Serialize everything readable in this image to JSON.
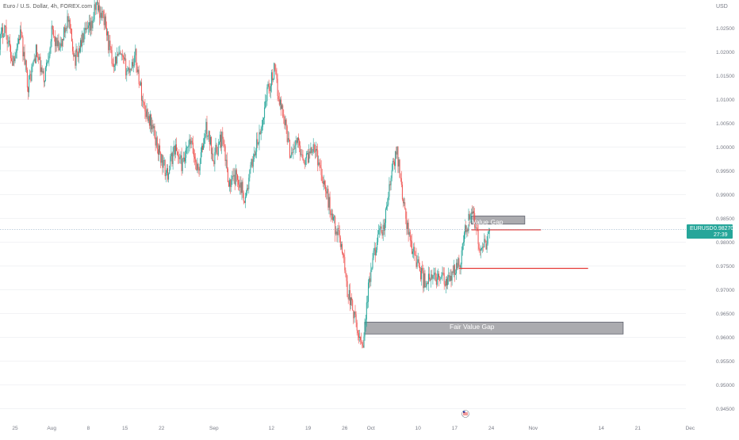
{
  "header": {
    "symbol_title": "Euro / U.S. Dollar, 4h, FOREX.com"
  },
  "price_axis": {
    "currency": "USD",
    "ticks": [
      "1.02500",
      "1.02000",
      "1.01500",
      "1.01000",
      "1.00500",
      "1.00000",
      "0.99500",
      "0.99000",
      "0.98500",
      "0.98000",
      "0.97500",
      "0.97000",
      "0.96500",
      "0.96000",
      "0.95500",
      "0.95000",
      "0.94500"
    ]
  },
  "time_axis": {
    "ticks": [
      {
        "label": "25",
        "day": 0
      },
      {
        "label": "Aug",
        "day": 7
      },
      {
        "label": "8",
        "day": 14
      },
      {
        "label": "15",
        "day": 21
      },
      {
        "label": "22",
        "day": 28
      },
      {
        "label": "Sep",
        "day": 38
      },
      {
        "label": "12",
        "day": 49
      },
      {
        "label": "19",
        "day": 56
      },
      {
        "label": "26",
        "day": 63
      },
      {
        "label": "Oct",
        "day": 68
      },
      {
        "label": "10",
        "day": 77
      },
      {
        "label": "17",
        "day": 84
      },
      {
        "label": "24",
        "day": 91
      },
      {
        "label": "Nov",
        "day": 99
      },
      {
        "label": "14",
        "day": 112
      },
      {
        "label": "21",
        "day": 119
      },
      {
        "label": "Dec",
        "day": 129
      }
    ]
  },
  "last_price": {
    "symbol": "EURUSD",
    "price": "0.98270",
    "countdown": "27:39",
    "value": 0.9827
  },
  "annotations": {
    "fvg_upper": {
      "label": "Fair Value Gap",
      "top": 0.9855,
      "bottom": 0.9838,
      "start_day": 87.2,
      "end_day": 97.4
    },
    "fvg_lower": {
      "label": "Fair Value Gap",
      "top": 0.9632,
      "bottom": 0.9607,
      "start_day": 66.8,
      "end_day": 116.2
    },
    "level_upper": {
      "price": 0.9826,
      "start_day": 87.2,
      "end_day": 100.5
    },
    "level_lower": {
      "price": 0.9745,
      "start_day": 84.8,
      "end_day": 109.5
    }
  },
  "colors": {
    "up": "#26a69a",
    "down": "#ef5350",
    "level": "#e53935",
    "box_fill": "#a6a7ab",
    "box_border": "#5d606b",
    "price_line": "#9ab4c9",
    "axis_text": "#787b86",
    "badge": "#26a69a"
  },
  "chart_data": {
    "type": "candlestick",
    "title": "Euro / U.S. Dollar, 4h, FOREX.com",
    "unit": "USD",
    "ylim": [
      0.9425,
      1.029
    ],
    "x_start_date": "2022-07-25",
    "anchors": [
      [
        -3.2,
        1.0215
      ],
      [
        -2.0,
        1.0255
      ],
      [
        -0.5,
        1.018
      ],
      [
        1.0,
        1.024
      ],
      [
        2.5,
        1.013
      ],
      [
        4.0,
        1.02
      ],
      [
        5.5,
        1.014
      ],
      [
        7.0,
        1.024
      ],
      [
        8.5,
        1.02
      ],
      [
        10.0,
        1.027
      ],
      [
        11.5,
        1.0185
      ],
      [
        13.0,
        1.023
      ],
      [
        14.5,
        1.025
      ],
      [
        15.5,
        1.03
      ],
      [
        17.0,
        1.027
      ],
      [
        18.5,
        1.018
      ],
      [
        20.0,
        1.019
      ],
      [
        21.5,
        1.016
      ],
      [
        23.0,
        1.019
      ],
      [
        24.5,
        1.009
      ],
      [
        26.0,
        1.005
      ],
      [
        27.5,
        0.999
      ],
      [
        29.0,
        0.994
      ],
      [
        30.5,
        1.0
      ],
      [
        32.0,
        0.996
      ],
      [
        33.5,
        1.001
      ],
      [
        35.0,
        0.995
      ],
      [
        36.5,
        1.004
      ],
      [
        38.0,
        0.998
      ],
      [
        39.5,
        1.002
      ],
      [
        41.0,
        0.992
      ],
      [
        42.5,
        0.994
      ],
      [
        44.0,
        0.989
      ],
      [
        45.5,
        0.998
      ],
      [
        47.0,
        1.003
      ],
      [
        48.0,
        1.011
      ],
      [
        49.5,
        1.016
      ],
      [
        50.5,
        1.01
      ],
      [
        51.5,
        1.006
      ],
      [
        52.5,
        0.999
      ],
      [
        54.0,
        1.001
      ],
      [
        55.5,
        0.997
      ],
      [
        57.0,
        1.001
      ],
      [
        58.5,
        0.995
      ],
      [
        60.0,
        0.988
      ],
      [
        61.5,
        0.982
      ],
      [
        62.5,
        0.979
      ],
      [
        63.5,
        0.97
      ],
      [
        64.5,
        0.966
      ],
      [
        65.5,
        0.9605
      ],
      [
        66.5,
        0.959
      ],
      [
        67.5,
        0.97
      ],
      [
        69.0,
        0.98
      ],
      [
        70.5,
        0.983
      ],
      [
        72.0,
        0.995
      ],
      [
        73.0,
        0.999
      ],
      [
        74.5,
        0.986
      ],
      [
        75.5,
        0.98
      ],
      [
        76.5,
        0.977
      ],
      [
        78.0,
        0.972
      ],
      [
        79.5,
        0.972
      ],
      [
        81.0,
        0.973
      ],
      [
        82.5,
        0.971
      ],
      [
        83.5,
        0.973
      ],
      [
        85.0,
        0.976
      ],
      [
        86.0,
        0.982
      ],
      [
        87.0,
        0.986
      ],
      [
        88.0,
        0.984
      ],
      [
        89.0,
        0.977
      ],
      [
        90.0,
        0.98
      ],
      [
        90.8,
        0.9827
      ]
    ]
  }
}
